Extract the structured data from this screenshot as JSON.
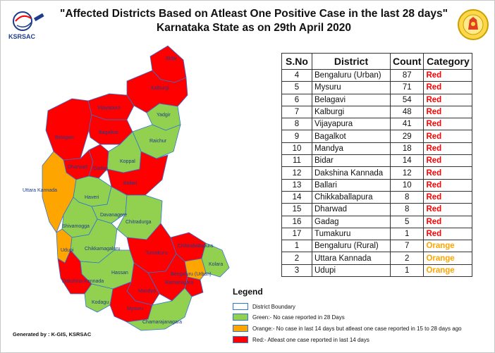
{
  "title_line1": "\"Affected Districts Based on Atleast One Positive Case in the last 28 days\"",
  "title_line2": "Karnataka State as on 29th April 2020",
  "logo_left_text": "KSRSAC",
  "colors": {
    "red": "#ff0000",
    "green": "#92d050",
    "orange": "#ffa500",
    "boundary": "#2e75d6"
  },
  "table": {
    "headers": [
      "S.No",
      "District",
      "Count",
      "Category"
    ],
    "rows": [
      {
        "sno": "4",
        "district": "Bengaluru (Urban)",
        "count": "87",
        "category": "Red"
      },
      {
        "sno": "5",
        "district": "Mysuru",
        "count": "71",
        "category": "Red"
      },
      {
        "sno": "6",
        "district": "Belagavi",
        "count": "54",
        "category": "Red"
      },
      {
        "sno": "7",
        "district": "Kalburgi",
        "count": "48",
        "category": "Red"
      },
      {
        "sno": "8",
        "district": "Vijayapura",
        "count": "41",
        "category": "Red"
      },
      {
        "sno": "9",
        "district": "Bagalkot",
        "count": "29",
        "category": "Red"
      },
      {
        "sno": "10",
        "district": "Mandya",
        "count": "18",
        "category": "Red"
      },
      {
        "sno": "11",
        "district": "Bidar",
        "count": "14",
        "category": "Red"
      },
      {
        "sno": "12",
        "district": "Dakshina Kannada",
        "count": "12",
        "category": "Red"
      },
      {
        "sno": "13",
        "district": "Ballari",
        "count": "10",
        "category": "Red"
      },
      {
        "sno": "14",
        "district": "Chikkaballapura",
        "count": "8",
        "category": "Red"
      },
      {
        "sno": "15",
        "district": "Dharwad",
        "count": "8",
        "category": "Red"
      },
      {
        "sno": "16",
        "district": "Gadag",
        "count": "5",
        "category": "Red"
      },
      {
        "sno": "17",
        "district": "Tumakuru",
        "count": "1",
        "category": "Red"
      },
      {
        "sno": "1",
        "district": "Bengaluru (Rural)",
        "count": "7",
        "category": "Orange"
      },
      {
        "sno": "2",
        "district": "Uttara Kannada",
        "count": "2",
        "category": "Orange"
      },
      {
        "sno": "3",
        "district": "Udupi",
        "count": "1",
        "category": "Orange"
      }
    ]
  },
  "map_labels": {
    "bidar": "Bidar",
    "kalburgi": "Kalburgi",
    "vijayapura": "Vijayapura",
    "yadgir": "Yadgir",
    "bagalkot": "Bagalkot",
    "belagavi": "Belagavi",
    "raichur": "Raichur",
    "dharwad": "Dharwad",
    "gadag": "Gadag",
    "koppal": "Koppal",
    "ballari": "Ballari",
    "uttara_kannada": "Uttara Kannada",
    "haveri": "Haveri",
    "davanagere": "Davanagere",
    "shivamogga": "Shivamogga",
    "chitradurga": "Chitradurga",
    "udupi": "Udupi",
    "chikkamagaluru": "Chikkamagaluru",
    "tumakuru": "Tumakuru",
    "chikkaballapura": "Chikkaballapura",
    "kolara": "Kolara",
    "hassan": "Hassan",
    "dakshina_kannada": "Dakshina Kannada",
    "bengaluru_urban": "Bengaluru (Urban)",
    "ramanagara": "Ramanagara",
    "mandya": "Mandya",
    "kodagu": "Kodagu",
    "mysuru": "Mysuru",
    "chamarajanagara": "Chamarajanagara"
  },
  "legend": {
    "title": "Legend",
    "items": [
      {
        "key": "boundary",
        "label": "District Boundary"
      },
      {
        "key": "green",
        "label": "Green:- No case reported in 28 Days"
      },
      {
        "key": "orange",
        "label": "Orange:- No case in last 14 days but atleast one case reported in 15 to 28 days ago"
      },
      {
        "key": "red",
        "label": "Red:- Atleast one case reported in last 14 days"
      }
    ]
  },
  "footer": "Generated by : K-GIS, KSRSAC"
}
